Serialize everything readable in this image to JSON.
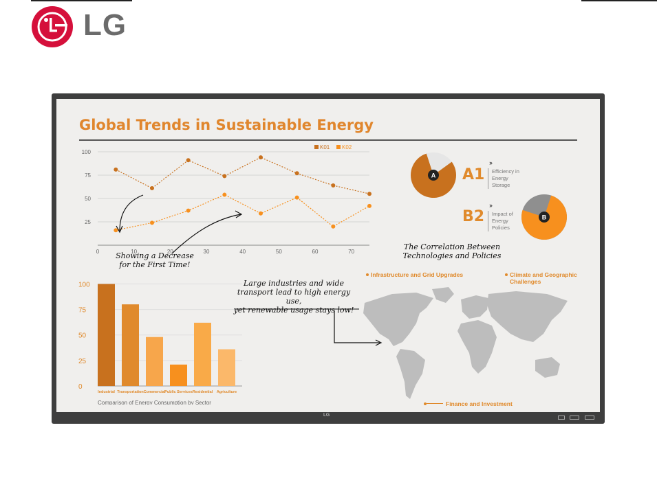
{
  "brand": {
    "name": "LG",
    "logo_color": "#d5103b",
    "text_color": "#6b6b6b"
  },
  "colors": {
    "accent_orange": "#e08a2c",
    "dark_orange": "#c8711e",
    "light_orange": "#f7a64b",
    "grey": "#8f8f8f",
    "screen_bg": "#f0efed",
    "bezel": "#3e3e3e"
  },
  "slide": {
    "title": "Global Trends in Sustainable Energy",
    "annotation_decrease": "Showing a Decrease\nfor the First Time!",
    "annotation_industry": "Large industries and wide\ntransport lead to high energy use,\nyet renewable usage stays low!",
    "correlation_title": "The Correlation Between\nTechnologies and Policies",
    "bezel_logo": "LG"
  },
  "pies": [
    {
      "marker": "A",
      "code": "A1",
      "description": [
        "Efficiency in",
        "Energy",
        "Storage"
      ],
      "fraction": 0.8,
      "color": "#c8711e"
    },
    {
      "marker": "B",
      "code": "B2",
      "description": [
        "Impact of",
        "Energy",
        "Policies"
      ],
      "fraction": 0.75,
      "color": "#f7901e"
    }
  ],
  "map": {
    "labels": {
      "infrastructure": "Infrastructure and Grid Upgrades",
      "climate": "Climate and Geographic\nChallenges",
      "finance": "Finance and Investment"
    }
  },
  "chart_data": [
    {
      "type": "line",
      "title": "",
      "xlabel": "",
      "ylabel": "",
      "xlim": [
        0,
        75
      ],
      "ylim": [
        0,
        100
      ],
      "x_ticks": [
        0,
        10,
        20,
        30,
        40,
        50,
        60,
        70
      ],
      "y_ticks": [
        25,
        50,
        75,
        100
      ],
      "grid": true,
      "legend": "top-right",
      "series": [
        {
          "name": "K01",
          "x": [
            5,
            15,
            25,
            35,
            45,
            55,
            65,
            75
          ],
          "values": [
            81,
            61,
            91,
            74,
            94,
            77,
            64,
            55
          ],
          "color": "#c8711e"
        },
        {
          "name": "K02",
          "x": [
            5,
            15,
            25,
            35,
            45,
            55,
            65,
            75
          ],
          "values": [
            16,
            24,
            37,
            54,
            34,
            51,
            20,
            42
          ],
          "color": "#f7901e"
        }
      ]
    },
    {
      "type": "bar",
      "title": "Comparison of Energy Consumption by Sector",
      "categories": [
        "Industrial",
        "Transportation",
        "Commercial",
        "Public Services",
        "Residential",
        "Agriculture"
      ],
      "values": [
        100,
        80,
        48,
        21,
        62,
        36
      ],
      "colors": [
        "#c8711e",
        "#e08a2c",
        "#f7a64b",
        "#f7901e",
        "#f9aa48",
        "#fbb86a"
      ],
      "y_ticks": [
        0,
        25,
        50,
        75,
        100
      ],
      "ylim": [
        0,
        105
      ],
      "grid": true
    }
  ]
}
